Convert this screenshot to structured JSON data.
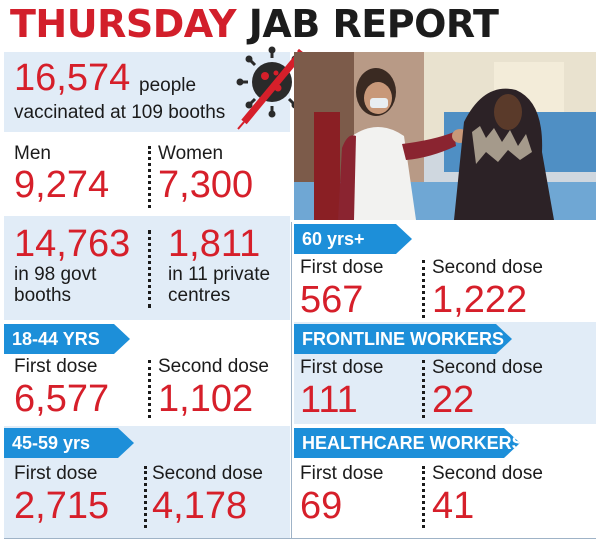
{
  "headline": {
    "part1": "THURSDAY",
    "part2": "JAB REPORT"
  },
  "total": {
    "value": "16,574",
    "line1": "people",
    "line2": "vaccinated at 109 booths"
  },
  "gender": {
    "men_label": "Men",
    "men_value": "9,274",
    "women_label": "Women",
    "women_value": "7,300"
  },
  "booths": {
    "govt_value": "14,763",
    "govt_line1": "in 98 govt",
    "govt_line2": "booths",
    "private_value": "1,811",
    "private_line1": "in 11 private",
    "private_line2": "centres"
  },
  "age_18_44": {
    "tag": "18-44 YRS",
    "first_label": "First dose",
    "first_value": "6,577",
    "second_label": "Second dose",
    "second_value": "1,102"
  },
  "age_45_59": {
    "tag": "45-59 yrs",
    "first_label": "First dose",
    "first_value": "2,715",
    "second_label": "Second dose",
    "second_value": "4,178"
  },
  "age_60": {
    "tag": "60 yrs+",
    "first_label": "First dose",
    "first_value": "567",
    "second_label": "Second dose",
    "second_value": "1,222"
  },
  "frontline": {
    "tag": "FRONTLINE WORKERS",
    "first_label": "First dose",
    "first_value": "111",
    "second_label": "Second dose",
    "second_value": "22"
  },
  "healthcare": {
    "tag": "HEALTHCARE WORKERS",
    "first_label": "First dose",
    "first_value": "69",
    "second_label": "Second dose",
    "second_value": "41"
  },
  "colors": {
    "accent_red": "#d61f2a",
    "tag_blue": "#1d8fd9",
    "panel_blue": "#e1ecf7"
  },
  "icons": {
    "virus": "virus-icon",
    "syringe": "syringe-icon"
  }
}
